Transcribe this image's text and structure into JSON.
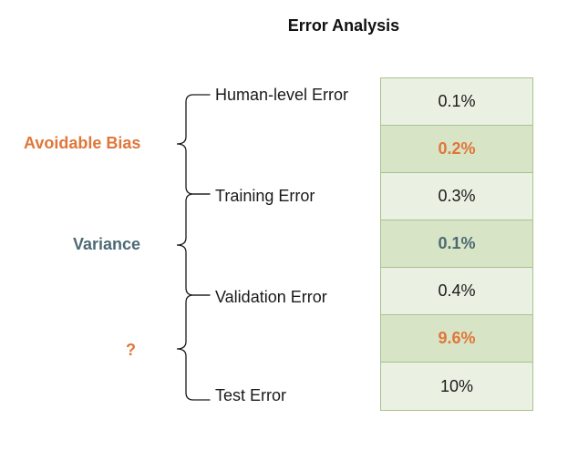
{
  "title": "Error Analysis",
  "colors": {
    "accent_orange": "#e0763a",
    "accent_slate": "#4d6a73",
    "cell_light": "#eaf1e2",
    "cell_dark": "#d7e5c6",
    "border": "#a9c190"
  },
  "metrics": [
    {
      "label": "Human-level Error"
    },
    {
      "label": "Training Error"
    },
    {
      "label": "Validation Error"
    },
    {
      "label": "Test Error"
    }
  ],
  "gaps": [
    {
      "label": "Avoidable Bias",
      "color": "#e0763a"
    },
    {
      "label": "Variance",
      "color": "#4d6a73"
    },
    {
      "label": "?",
      "color": "#e0763a"
    }
  ],
  "table": {
    "cells": [
      {
        "value": "0.1%",
        "kind": "error"
      },
      {
        "value": "0.2%",
        "kind": "gap",
        "color": "#e0763a"
      },
      {
        "value": "0.3%",
        "kind": "error"
      },
      {
        "value": "0.1%",
        "kind": "gap",
        "color": "#4d6a73"
      },
      {
        "value": "0.4%",
        "kind": "error"
      },
      {
        "value": "9.6%",
        "kind": "gap",
        "color": "#e0763a"
      },
      {
        "value": "10%",
        "kind": "error"
      }
    ]
  }
}
